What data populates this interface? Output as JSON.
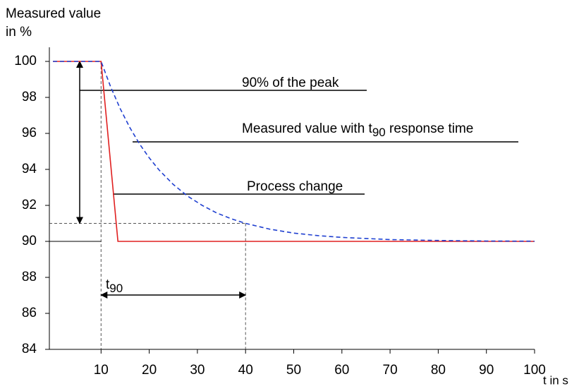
{
  "chart_data": {
    "type": "line",
    "y_label": "Measured value",
    "y_unit": "in %",
    "x_label": "t in s",
    "xlim": [
      0,
      100
    ],
    "xticks": [
      10,
      20,
      30,
      40,
      50,
      60,
      70,
      80,
      90,
      100
    ],
    "ylim": [
      84,
      100
    ],
    "yticks": [
      84,
      86,
      88,
      90,
      92,
      94,
      96,
      98,
      100
    ],
    "series": [
      {
        "name": "Process change",
        "color": "#e02020",
        "dashed": false,
        "x": [
          0,
          10,
          13.5,
          100
        ],
        "values": [
          100,
          100,
          90,
          90
        ]
      },
      {
        "name": "Measured value with t90 response time",
        "color": "#2040d0",
        "dashed": true,
        "x": [
          0,
          10,
          12,
          14,
          16,
          18,
          20,
          22,
          25,
          28,
          31,
          34,
          37,
          40,
          45,
          50,
          55,
          60,
          70,
          80,
          90,
          100
        ],
        "values": [
          100,
          100,
          98.58,
          97.36,
          96.31,
          95.41,
          94.64,
          93.98,
          93.16,
          92.51,
          92.0,
          91.58,
          91.26,
          91.0,
          90.68,
          90.46,
          90.32,
          90.22,
          90.1,
          90.05,
          90.02,
          90.01
        ]
      }
    ],
    "annotations": {
      "peak": {
        "text": "90% of the peak"
      },
      "measured": {
        "text": "Measured value with t",
        "sub": "90",
        "after": " response time"
      },
      "process": {
        "text": "Process change"
      },
      "t90": {
        "text": "t",
        "sub": "90"
      }
    },
    "t90_start": 10,
    "t90_end": 40,
    "t90_level": 91,
    "peak": 100,
    "final": 90
  }
}
